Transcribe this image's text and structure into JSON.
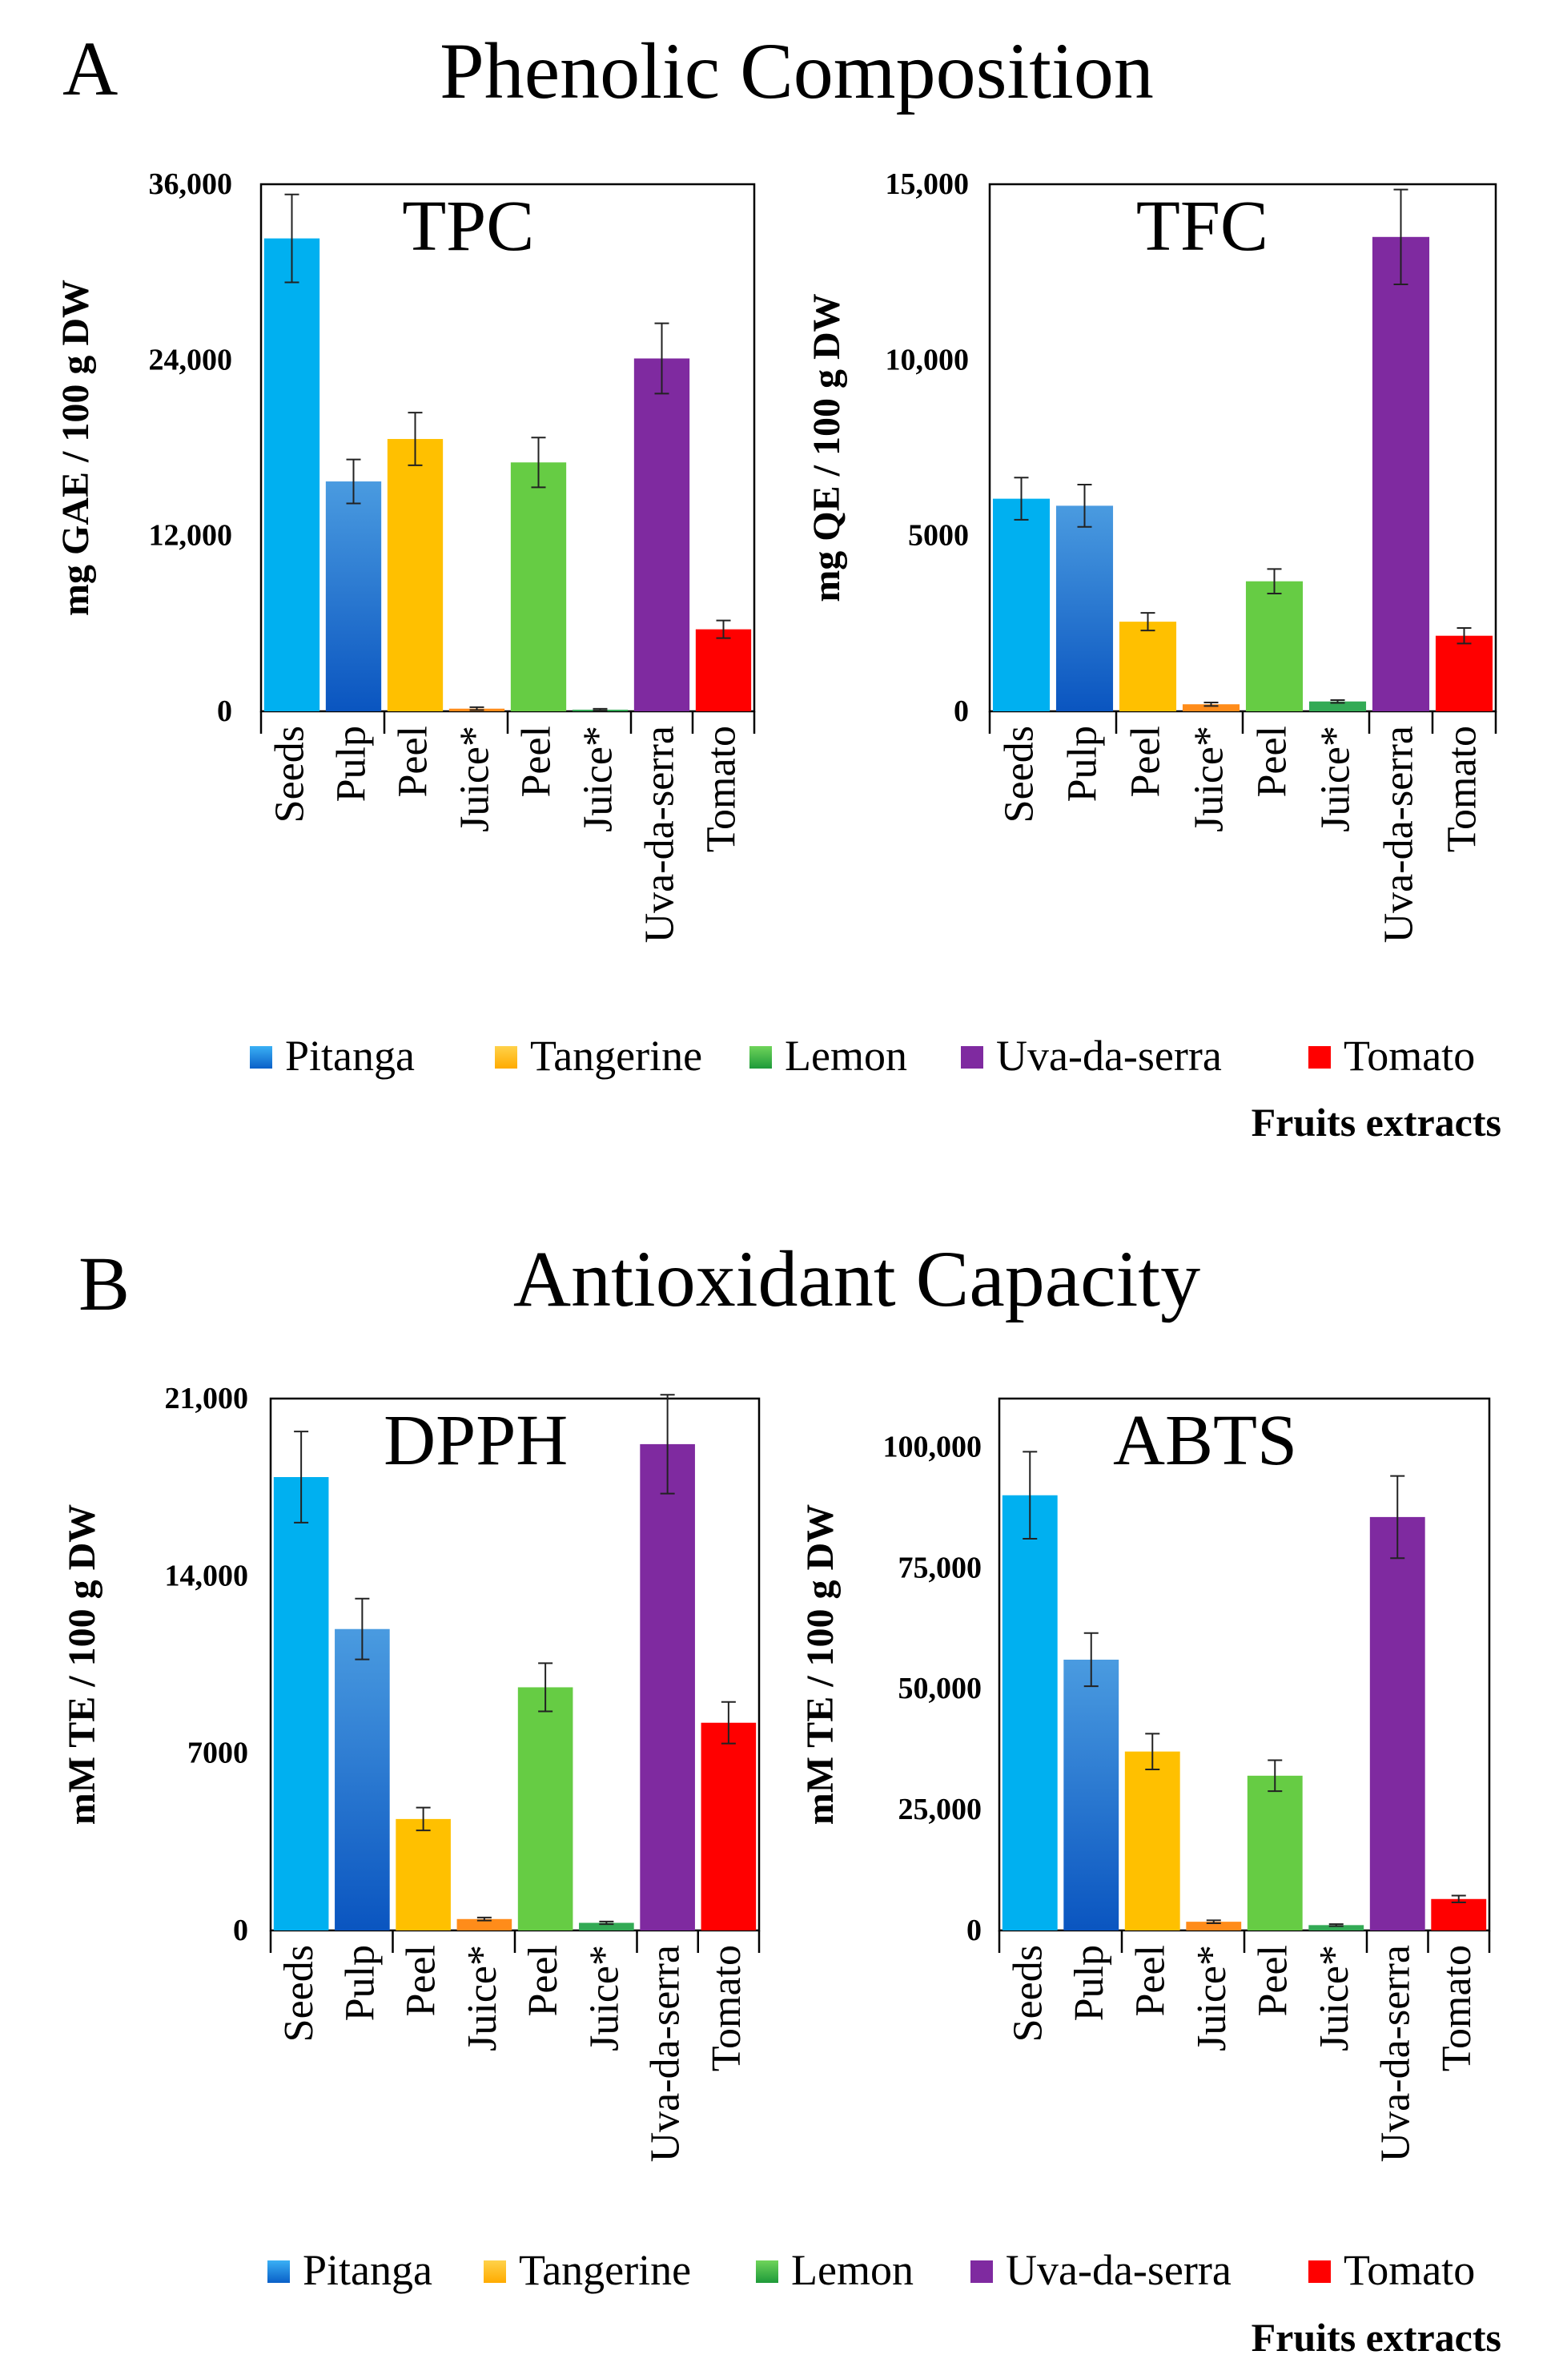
{
  "figure": {
    "panels": [
      {
        "letter": "A",
        "title": "Phenolic Composition",
        "footer": "Fruits extracts"
      },
      {
        "letter": "B",
        "title": "Antioxidant Capacity",
        "footer": "Fruits extracts"
      }
    ],
    "legend": [
      {
        "label": "Pitanga",
        "color": "#1a8fe0"
      },
      {
        "label": "Tangerine",
        "color": "#ffc000"
      },
      {
        "label": "Lemon",
        "color": "#3cb043"
      },
      {
        "label": "Uva-da-serra",
        "color": "#7f2aa0"
      },
      {
        "label": "Tomato",
        "color": "#ff0000"
      }
    ]
  },
  "chart_data": [
    {
      "type": "bar",
      "title": "TPC",
      "ylabel": "mg GAE / 100 g DW",
      "ylim": [
        0,
        36000
      ],
      "yticks": [
        0,
        12000,
        24000,
        36000
      ],
      "ytick_labels": [
        "0",
        "12,000",
        "24,000",
        "36,000"
      ],
      "categories": [
        "Seeds",
        "Pulp",
        "Peel",
        "Juice*",
        "Peel",
        "Juice*",
        "Uva-da-serra",
        "Tomato"
      ],
      "values": [
        32300,
        15700,
        18600,
        180,
        17000,
        110,
        24100,
        5600
      ],
      "errors": [
        3000,
        1500,
        1800,
        100,
        1700,
        60,
        2400,
        600
      ],
      "colors": [
        "#00b0f0",
        "pulp",
        "#ffc000",
        "#ff8c1a",
        "#66cc44",
        "#33aa55",
        "#7f2aa0",
        "#ff0000"
      ]
    },
    {
      "type": "bar",
      "title": "TFC",
      "ylabel": "mg QE / 100 g DW",
      "ylim": [
        0,
        15000
      ],
      "yticks": [
        0,
        5000,
        10000,
        15000
      ],
      "ytick_labels": [
        "0",
        "5000",
        "10,000",
        "15,000"
      ],
      "categories": [
        "Seeds",
        "Pulp",
        "Peel",
        "Juice*",
        "Peel",
        "Juice*",
        "Uva-da-serra",
        "Tomato"
      ],
      "values": [
        6050,
        5850,
        2550,
        200,
        3700,
        280,
        13500,
        2150
      ],
      "errors": [
        600,
        600,
        250,
        50,
        350,
        40,
        1350,
        220
      ],
      "colors": [
        "#00b0f0",
        "pulp",
        "#ffc000",
        "#ff8c1a",
        "#66cc44",
        "#33aa55",
        "#7f2aa0",
        "#ff0000"
      ]
    },
    {
      "type": "bar",
      "title": "DPPH",
      "ylabel": "mM TE / 100 g DW",
      "ylim": [
        0,
        21000
      ],
      "yticks": [
        0,
        7000,
        14000,
        21000
      ],
      "ytick_labels": [
        "0",
        "7000",
        "14,000",
        "21,000"
      ],
      "categories": [
        "Seeds",
        "Pulp",
        "Peel",
        "Juice*",
        "Peel",
        "Juice*",
        "Uva-da-serra",
        "Tomato"
      ],
      "values": [
        17900,
        11900,
        4400,
        450,
        9600,
        300,
        19200,
        8200
      ],
      "errors": [
        1800,
        1200,
        450,
        60,
        950,
        50,
        1950,
        820
      ],
      "colors": [
        "#00b0f0",
        "pulp",
        "#ffc000",
        "#ff8c1a",
        "#66cc44",
        "#33aa55",
        "#7f2aa0",
        "#ff0000"
      ]
    },
    {
      "type": "bar",
      "title": "ABTS",
      "ylabel": "mM TE / 100 g DW",
      "ylim": [
        0,
        110000
      ],
      "yticks": [
        0,
        25000,
        50000,
        75000,
        100000
      ],
      "ytick_labels": [
        "0",
        "25,000",
        "50,000",
        "75,000",
        "100,000"
      ],
      "categories": [
        "Seeds",
        "Pulp",
        "Peel",
        "Juice*",
        "Peel",
        "Juice*",
        "Uva-da-serra",
        "Tomato"
      ],
      "values": [
        90000,
        56000,
        37000,
        1800,
        32000,
        1100,
        85500,
        6500
      ],
      "errors": [
        9000,
        5500,
        3700,
        300,
        3200,
        200,
        8500,
        700
      ],
      "colors": [
        "#00b0f0",
        "pulp",
        "#ffc000",
        "#ff8c1a",
        "#66cc44",
        "#33aa55",
        "#7f2aa0",
        "#ff0000"
      ]
    }
  ]
}
